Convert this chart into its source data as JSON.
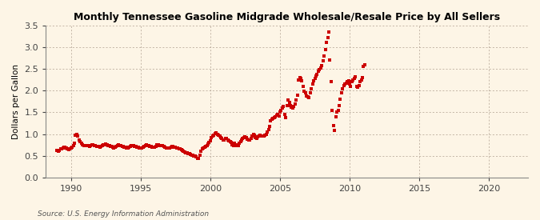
{
  "title": "Monthly Tennessee Gasoline Midgrade Wholesale/Resale Price by All Sellers",
  "ylabel": "Dollars per Gallon",
  "source": "Source: U.S. Energy Information Administration",
  "background_color": "#fdf5e6",
  "dot_color": "#cc0000",
  "xlim": [
    1988.2,
    2022.8
  ],
  "ylim": [
    0.0,
    3.5
  ],
  "yticks": [
    0.0,
    0.5,
    1.0,
    1.5,
    2.0,
    2.5,
    3.0,
    3.5
  ],
  "xticks": [
    1990,
    1995,
    2000,
    2005,
    2010,
    2015,
    2020
  ],
  "data": [
    [
      1989.0,
      0.62
    ],
    [
      1989.08,
      0.61
    ],
    [
      1989.17,
      0.63
    ],
    [
      1989.25,
      0.66
    ],
    [
      1989.33,
      0.65
    ],
    [
      1989.42,
      0.68
    ],
    [
      1989.5,
      0.7
    ],
    [
      1989.58,
      0.69
    ],
    [
      1989.67,
      0.67
    ],
    [
      1989.75,
      0.65
    ],
    [
      1989.83,
      0.64
    ],
    [
      1989.92,
      0.65
    ],
    [
      1990.0,
      0.67
    ],
    [
      1990.08,
      0.7
    ],
    [
      1990.17,
      0.74
    ],
    [
      1990.25,
      0.78
    ],
    [
      1990.33,
      0.98
    ],
    [
      1990.42,
      1.0
    ],
    [
      1990.5,
      0.96
    ],
    [
      1990.58,
      0.87
    ],
    [
      1990.67,
      0.82
    ],
    [
      1990.75,
      0.79
    ],
    [
      1990.83,
      0.75
    ],
    [
      1990.92,
      0.73
    ],
    [
      1991.0,
      0.74
    ],
    [
      1991.08,
      0.73
    ],
    [
      1991.17,
      0.74
    ],
    [
      1991.25,
      0.73
    ],
    [
      1991.33,
      0.72
    ],
    [
      1991.42,
      0.74
    ],
    [
      1991.5,
      0.76
    ],
    [
      1991.58,
      0.76
    ],
    [
      1991.67,
      0.74
    ],
    [
      1991.75,
      0.73
    ],
    [
      1991.83,
      0.72
    ],
    [
      1991.92,
      0.71
    ],
    [
      1992.0,
      0.71
    ],
    [
      1992.08,
      0.7
    ],
    [
      1992.17,
      0.72
    ],
    [
      1992.25,
      0.74
    ],
    [
      1992.33,
      0.75
    ],
    [
      1992.42,
      0.76
    ],
    [
      1992.5,
      0.77
    ],
    [
      1992.58,
      0.76
    ],
    [
      1992.67,
      0.74
    ],
    [
      1992.75,
      0.73
    ],
    [
      1992.83,
      0.72
    ],
    [
      1992.92,
      0.71
    ],
    [
      1993.0,
      0.7
    ],
    [
      1993.08,
      0.68
    ],
    [
      1993.17,
      0.7
    ],
    [
      1993.25,
      0.72
    ],
    [
      1993.33,
      0.73
    ],
    [
      1993.42,
      0.75
    ],
    [
      1993.5,
      0.74
    ],
    [
      1993.58,
      0.73
    ],
    [
      1993.67,
      0.72
    ],
    [
      1993.75,
      0.71
    ],
    [
      1993.83,
      0.7
    ],
    [
      1993.92,
      0.7
    ],
    [
      1994.0,
      0.68
    ],
    [
      1994.08,
      0.67
    ],
    [
      1994.17,
      0.69
    ],
    [
      1994.25,
      0.71
    ],
    [
      1994.33,
      0.73
    ],
    [
      1994.42,
      0.74
    ],
    [
      1994.5,
      0.73
    ],
    [
      1994.58,
      0.72
    ],
    [
      1994.67,
      0.71
    ],
    [
      1994.75,
      0.7
    ],
    [
      1994.83,
      0.69
    ],
    [
      1994.92,
      0.68
    ],
    [
      1995.0,
      0.68
    ],
    [
      1995.08,
      0.67
    ],
    [
      1995.17,
      0.69
    ],
    [
      1995.25,
      0.72
    ],
    [
      1995.33,
      0.74
    ],
    [
      1995.42,
      0.75
    ],
    [
      1995.5,
      0.74
    ],
    [
      1995.58,
      0.73
    ],
    [
      1995.67,
      0.72
    ],
    [
      1995.75,
      0.71
    ],
    [
      1995.83,
      0.7
    ],
    [
      1995.92,
      0.69
    ],
    [
      1996.0,
      0.7
    ],
    [
      1996.08,
      0.72
    ],
    [
      1996.17,
      0.75
    ],
    [
      1996.25,
      0.76
    ],
    [
      1996.33,
      0.74
    ],
    [
      1996.42,
      0.73
    ],
    [
      1996.5,
      0.74
    ],
    [
      1996.58,
      0.73
    ],
    [
      1996.67,
      0.72
    ],
    [
      1996.75,
      0.7
    ],
    [
      1996.83,
      0.68
    ],
    [
      1996.92,
      0.67
    ],
    [
      1997.0,
      0.67
    ],
    [
      1997.08,
      0.68
    ],
    [
      1997.17,
      0.7
    ],
    [
      1997.25,
      0.72
    ],
    [
      1997.33,
      0.71
    ],
    [
      1997.42,
      0.7
    ],
    [
      1997.5,
      0.69
    ],
    [
      1997.58,
      0.68
    ],
    [
      1997.67,
      0.67
    ],
    [
      1997.75,
      0.66
    ],
    [
      1997.83,
      0.65
    ],
    [
      1997.92,
      0.64
    ],
    [
      1998.0,
      0.62
    ],
    [
      1998.08,
      0.6
    ],
    [
      1998.17,
      0.58
    ],
    [
      1998.25,
      0.57
    ],
    [
      1998.33,
      0.56
    ],
    [
      1998.42,
      0.55
    ],
    [
      1998.5,
      0.54
    ],
    [
      1998.58,
      0.53
    ],
    [
      1998.67,
      0.52
    ],
    [
      1998.75,
      0.51
    ],
    [
      1998.83,
      0.5
    ],
    [
      1998.92,
      0.49
    ],
    [
      1999.0,
      0.47
    ],
    [
      1999.08,
      0.44
    ],
    [
      1999.17,
      0.43
    ],
    [
      1999.25,
      0.52
    ],
    [
      1999.33,
      0.6
    ],
    [
      1999.42,
      0.66
    ],
    [
      1999.5,
      0.68
    ],
    [
      1999.58,
      0.7
    ],
    [
      1999.67,
      0.72
    ],
    [
      1999.75,
      0.74
    ],
    [
      1999.83,
      0.77
    ],
    [
      1999.92,
      0.8
    ],
    [
      2000.0,
      0.84
    ],
    [
      2000.08,
      0.92
    ],
    [
      2000.17,
      0.96
    ],
    [
      2000.25,
      0.98
    ],
    [
      2000.33,
      1.01
    ],
    [
      2000.42,
      1.03
    ],
    [
      2000.5,
      1.0
    ],
    [
      2000.58,
      0.97
    ],
    [
      2000.67,
      0.96
    ],
    [
      2000.75,
      0.92
    ],
    [
      2000.83,
      0.89
    ],
    [
      2000.92,
      0.86
    ],
    [
      2001.0,
      0.87
    ],
    [
      2001.08,
      0.9
    ],
    [
      2001.17,
      0.9
    ],
    [
      2001.25,
      0.87
    ],
    [
      2001.33,
      0.84
    ],
    [
      2001.42,
      0.82
    ],
    [
      2001.5,
      0.8
    ],
    [
      2001.58,
      0.76
    ],
    [
      2001.67,
      0.74
    ],
    [
      2001.75,
      0.78
    ],
    [
      2001.83,
      0.75
    ],
    [
      2001.92,
      0.73
    ],
    [
      2002.0,
      0.74
    ],
    [
      2002.08,
      0.78
    ],
    [
      2002.17,
      0.83
    ],
    [
      2002.25,
      0.86
    ],
    [
      2002.33,
      0.9
    ],
    [
      2002.42,
      0.92
    ],
    [
      2002.5,
      0.93
    ],
    [
      2002.58,
      0.91
    ],
    [
      2002.67,
      0.88
    ],
    [
      2002.75,
      0.87
    ],
    [
      2002.83,
      0.87
    ],
    [
      2002.92,
      0.89
    ],
    [
      2003.0,
      0.95
    ],
    [
      2003.08,
      0.99
    ],
    [
      2003.17,
      0.97
    ],
    [
      2003.25,
      0.92
    ],
    [
      2003.33,
      0.9
    ],
    [
      2003.42,
      0.93
    ],
    [
      2003.5,
      0.95
    ],
    [
      2003.58,
      0.97
    ],
    [
      2003.67,
      0.96
    ],
    [
      2003.75,
      0.96
    ],
    [
      2003.83,
      0.95
    ],
    [
      2003.92,
      0.97
    ],
    [
      2004.0,
      1.0
    ],
    [
      2004.08,
      1.05
    ],
    [
      2004.17,
      1.1
    ],
    [
      2004.25,
      1.18
    ],
    [
      2004.33,
      1.3
    ],
    [
      2004.42,
      1.34
    ],
    [
      2004.5,
      1.36
    ],
    [
      2004.58,
      1.38
    ],
    [
      2004.67,
      1.4
    ],
    [
      2004.75,
      1.43
    ],
    [
      2004.83,
      1.45
    ],
    [
      2004.92,
      1.42
    ],
    [
      2005.0,
      1.5
    ],
    [
      2005.08,
      1.55
    ],
    [
      2005.17,
      1.6
    ],
    [
      2005.25,
      1.64
    ],
    [
      2005.33,
      1.45
    ],
    [
      2005.42,
      1.38
    ],
    [
      2005.5,
      1.65
    ],
    [
      2005.58,
      1.78
    ],
    [
      2005.67,
      1.72
    ],
    [
      2005.75,
      1.65
    ],
    [
      2005.83,
      1.62
    ],
    [
      2005.92,
      1.6
    ],
    [
      2006.0,
      1.63
    ],
    [
      2006.08,
      1.7
    ],
    [
      2006.17,
      1.78
    ],
    [
      2006.25,
      1.9
    ],
    [
      2006.33,
      2.25
    ],
    [
      2006.42,
      2.3
    ],
    [
      2006.5,
      2.28
    ],
    [
      2006.58,
      2.22
    ],
    [
      2006.67,
      2.1
    ],
    [
      2006.75,
      1.98
    ],
    [
      2006.83,
      1.95
    ],
    [
      2006.92,
      1.88
    ],
    [
      2007.0,
      1.85
    ],
    [
      2007.08,
      1.83
    ],
    [
      2007.17,
      1.95
    ],
    [
      2007.25,
      2.05
    ],
    [
      2007.33,
      2.15
    ],
    [
      2007.42,
      2.22
    ],
    [
      2007.5,
      2.28
    ],
    [
      2007.58,
      2.33
    ],
    [
      2007.67,
      2.38
    ],
    [
      2007.75,
      2.44
    ],
    [
      2007.83,
      2.48
    ],
    [
      2007.92,
      2.52
    ],
    [
      2008.0,
      2.58
    ],
    [
      2008.08,
      2.68
    ],
    [
      2008.17,
      2.8
    ],
    [
      2008.25,
      2.95
    ],
    [
      2008.33,
      3.12
    ],
    [
      2008.42,
      3.22
    ],
    [
      2008.5,
      3.35
    ],
    [
      2008.58,
      2.7
    ],
    [
      2008.67,
      2.2
    ],
    [
      2008.75,
      1.55
    ],
    [
      2008.83,
      1.2
    ],
    [
      2008.92,
      1.08
    ],
    [
      2009.0,
      1.4
    ],
    [
      2009.08,
      1.5
    ],
    [
      2009.17,
      1.55
    ],
    [
      2009.25,
      1.65
    ],
    [
      2009.33,
      1.8
    ],
    [
      2009.42,
      1.95
    ],
    [
      2009.5,
      2.05
    ],
    [
      2009.58,
      2.12
    ],
    [
      2009.67,
      2.15
    ],
    [
      2009.75,
      2.18
    ],
    [
      2009.83,
      2.2
    ],
    [
      2009.92,
      2.22
    ],
    [
      2010.0,
      2.15
    ],
    [
      2010.08,
      2.1
    ],
    [
      2010.17,
      2.2
    ],
    [
      2010.25,
      2.25
    ],
    [
      2010.33,
      2.28
    ],
    [
      2010.42,
      2.32
    ],
    [
      2010.5,
      2.1
    ],
    [
      2010.58,
      2.08
    ],
    [
      2010.67,
      2.12
    ],
    [
      2010.75,
      2.2
    ],
    [
      2010.83,
      2.25
    ],
    [
      2010.92,
      2.3
    ],
    [
      2011.0,
      2.55
    ],
    [
      2011.08,
      2.6
    ]
  ]
}
